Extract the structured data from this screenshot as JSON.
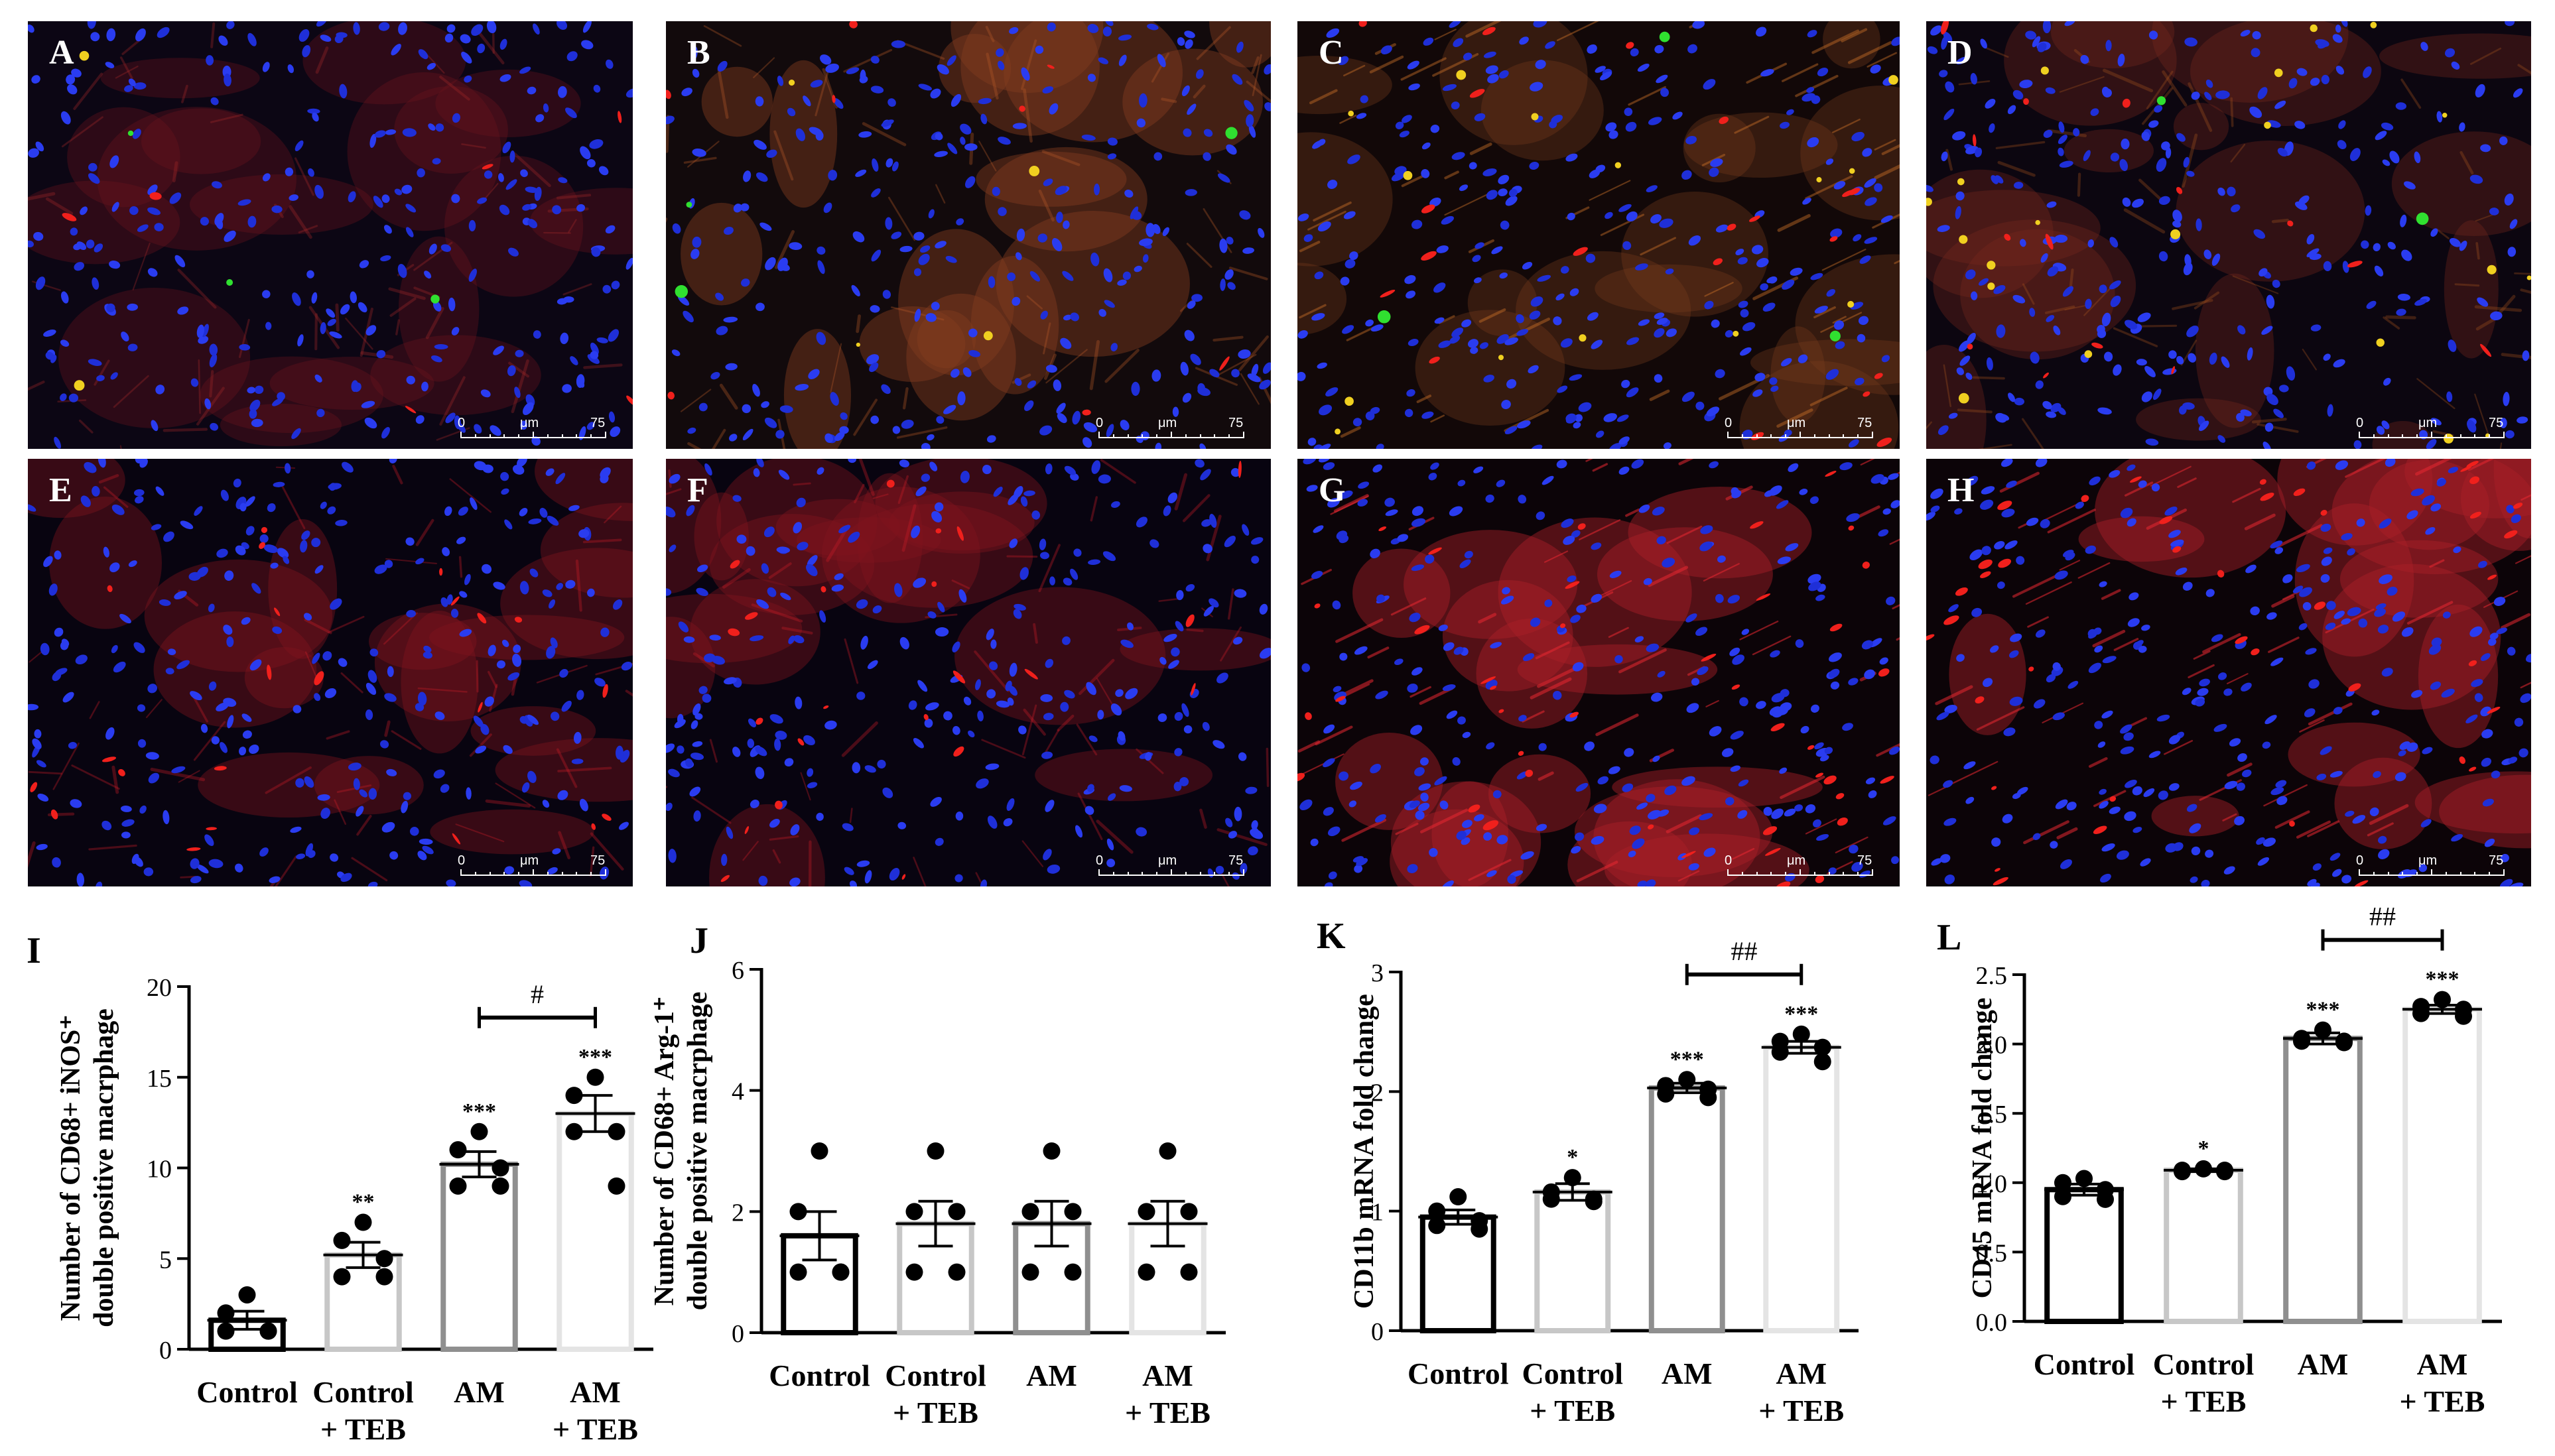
{
  "panels": [
    {
      "label": "A",
      "theme": "a"
    },
    {
      "label": "B",
      "theme": "b"
    },
    {
      "label": "C",
      "theme": "c"
    },
    {
      "label": "D",
      "theme": "d"
    },
    {
      "label": "E",
      "theme": "e"
    },
    {
      "label": "F",
      "theme": "e"
    },
    {
      "label": "G",
      "theme": "g"
    },
    {
      "label": "H",
      "theme": "g"
    }
  ],
  "scale_bar": {
    "start": "0",
    "unit": "μm",
    "end": "75"
  },
  "chart_data": [
    {
      "type": "bar",
      "panel_label": "I",
      "categories": [
        [
          "Control"
        ],
        [
          "Control",
          "+ TEB"
        ],
        [
          "AM"
        ],
        [
          "AM",
          "+ TEB"
        ]
      ],
      "values": [
        1.6,
        5.2,
        10.2,
        13.0
      ],
      "errors": [
        0.5,
        0.7,
        0.7,
        1.0
      ],
      "points": [
        [
          3,
          2,
          1,
          1,
          1
        ],
        [
          7,
          6,
          5,
          4,
          4
        ],
        [
          12,
          11,
          10,
          9,
          9
        ],
        [
          15,
          14,
          12,
          12,
          9
        ]
      ],
      "significance": [
        "",
        "**",
        "***",
        "***"
      ],
      "ylabel": [
        "Number of CD68+ iNOS⁺",
        "double positive macrphage"
      ],
      "ylim": [
        0,
        20
      ],
      "yticks": [
        "0",
        "5",
        "10",
        "15",
        "20"
      ],
      "bracket": {
        "from": 2,
        "to": 3,
        "label": "#"
      },
      "bar_colors": [
        "#000000",
        "#c7c7c7",
        "#8f8f8f",
        "#e4e4e4"
      ]
    },
    {
      "type": "bar",
      "panel_label": "J",
      "categories": [
        [
          "Control"
        ],
        [
          "Control",
          "+ TEB"
        ],
        [
          "AM"
        ],
        [
          "AM",
          "+ TEB"
        ]
      ],
      "values": [
        1.6,
        1.8,
        1.8,
        1.8
      ],
      "errors": [
        0.4,
        0.37,
        0.37,
        0.37
      ],
      "points": [
        [
          3,
          2,
          1,
          1,
          1
        ],
        [
          3,
          2,
          2,
          1,
          1
        ],
        [
          3,
          2,
          2,
          1,
          1
        ],
        [
          3,
          2,
          2,
          1,
          1
        ]
      ],
      "significance": [
        "",
        "",
        "",
        ""
      ],
      "ylabel": [
        "Number of CD68+ Arg-1⁺",
        "double positive macrphage"
      ],
      "ylim": [
        0,
        6
      ],
      "yticks": [
        "0",
        "2",
        "4",
        "6"
      ],
      "bracket": null,
      "bar_colors": [
        "#000000",
        "#c7c7c7",
        "#8f8f8f",
        "#e4e4e4"
      ]
    },
    {
      "type": "bar",
      "panel_label": "K",
      "categories": [
        [
          "Control"
        ],
        [
          "Control",
          "+ TEB"
        ],
        [
          "AM"
        ],
        [
          "AM",
          "+ TEB"
        ]
      ],
      "values": [
        0.95,
        1.16,
        2.03,
        2.37
      ],
      "errors": [
        0.06,
        0.07,
        0.04,
        0.05
      ],
      "points": [
        [
          1.12,
          1.0,
          0.92,
          0.88,
          0.85
        ],
        [
          1.28,
          1.16,
          1.1,
          1.1,
          1.08
        ],
        [
          2.1,
          2.05,
          2.02,
          1.98,
          1.95
        ],
        [
          2.48,
          2.42,
          2.37,
          2.33,
          2.25
        ]
      ],
      "significance": [
        "",
        "*",
        "***",
        "***"
      ],
      "ylabel": [
        "CD11b mRNA fold change"
      ],
      "ylim": [
        0,
        3
      ],
      "yticks": [
        "0",
        "1",
        "2",
        "3"
      ],
      "bracket": {
        "from": 2,
        "to": 3,
        "label": "##"
      },
      "bar_colors": [
        "#000000",
        "#c7c7c7",
        "#8f8f8f",
        "#e4e4e4"
      ]
    },
    {
      "type": "bar",
      "panel_label": "L",
      "categories": [
        [
          "Control"
        ],
        [
          "Control",
          "+ TEB"
        ],
        [
          "AM"
        ],
        [
          "AM",
          "+ TEB"
        ]
      ],
      "values": [
        0.95,
        1.09,
        2.04,
        2.25
      ],
      "errors": [
        0.04,
        0.01,
        0.04,
        0.03
      ],
      "points": [
        [
          1.03,
          1.0,
          0.95,
          0.9,
          0.88
        ],
        [
          1.1,
          1.09,
          1.09,
          1.08,
          1.08
        ],
        [
          2.1,
          2.04,
          2.02,
          2.02,
          2.01
        ],
        [
          2.32,
          2.27,
          2.25,
          2.22,
          2.2
        ]
      ],
      "significance": [
        "",
        "*",
        "***",
        "***"
      ],
      "ylabel": [
        "CD45 mRNA fold change"
      ],
      "ylim": [
        0,
        2.5
      ],
      "yticks": [
        "0.0",
        "0.5",
        "1.0",
        "1.5",
        "2.0",
        "2.5"
      ],
      "bracket": {
        "from": 2,
        "to": 3,
        "label": "##"
      },
      "bar_colors": [
        "#000000",
        "#c7c7c7",
        "#8f8f8f",
        "#e4e4e4"
      ]
    }
  ]
}
